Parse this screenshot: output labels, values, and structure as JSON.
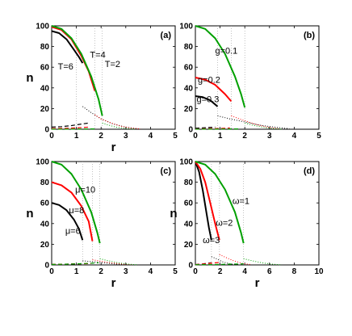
{
  "chart_data": [
    {
      "type": "line",
      "panel_label": "(a)",
      "xlabel": "r",
      "ylabel": "n",
      "xlim": [
        0,
        5
      ],
      "ylim": [
        0,
        100
      ],
      "xticks": [
        0,
        1,
        2,
        3,
        4,
        5
      ],
      "yticks": [
        0,
        20,
        40,
        60,
        80,
        100
      ],
      "vlines": [
        1.0,
        1.75,
        2.05
      ],
      "series": [
        {
          "name": "T=6",
          "color": "#000000",
          "condensate": {
            "x": [
              0,
              0.3,
              0.6,
              0.9,
              1.1,
              1.25
            ],
            "y": [
              95,
              93,
              87,
              77,
              70,
              64
            ]
          },
          "dashed": {
            "x": [
              0,
              0.4,
              0.8,
              1.2,
              1.5
            ],
            "y": [
              2,
              2.5,
              3.5,
              5,
              6
            ]
          },
          "dotted": {
            "x": [
              1.25,
              1.6,
              2.0,
              2.5,
              3.0,
              3.5
            ],
            "y": [
              22,
              16,
              10,
              5,
              2,
              0.5
            ]
          }
        },
        {
          "name": "T=4",
          "color": "#ff0000",
          "condensate": {
            "x": [
              0,
              0.4,
              0.8,
              1.2,
              1.5,
              1.75
            ],
            "y": [
              99,
              96,
              87,
              71,
              56,
              37
            ]
          },
          "dashed": {
            "x": [
              0,
              0.5,
              1.0,
              1.5
            ],
            "y": [
              0.6,
              0.8,
              1.3,
              2
            ]
          },
          "dotted": {
            "x": [
              1.75,
              2.0,
              2.4,
              2.8,
              3.2,
              3.6
            ],
            "y": [
              14,
              10,
              6,
              3,
              1.2,
              0.3
            ]
          }
        },
        {
          "name": "T=2",
          "color": "#00a000",
          "condensate": {
            "x": [
              0,
              0.4,
              0.8,
              1.2,
              1.6,
              1.9,
              2.05
            ],
            "y": [
              100,
              97,
              88,
              73,
              51,
              29,
              13
            ]
          },
          "dashed": {
            "x": [
              0,
              0.6,
              1.2,
              1.8
            ],
            "y": [
              0.1,
              0.1,
              0.2,
              0.3
            ]
          },
          "dotted": {
            "x": [
              2.05,
              2.3,
              2.6,
              3.0,
              3.4
            ],
            "y": [
              6,
              4,
              2,
              0.7,
              0.1
            ]
          }
        }
      ],
      "annotations": [
        {
          "text": "T=6",
          "x": 0.25,
          "y": 58
        },
        {
          "text": "T=4",
          "x": 1.55,
          "y": 69
        },
        {
          "text": "T=2",
          "x": 2.15,
          "y": 60
        }
      ]
    },
    {
      "type": "line",
      "panel_label": "(b)",
      "xlabel": "",
      "ylabel": "",
      "xlim": [
        0,
        5
      ],
      "ylim": [
        0,
        100
      ],
      "xticks": [
        0,
        1,
        2,
        3,
        4,
        5
      ],
      "yticks": [
        0,
        20,
        40,
        60,
        80,
        100
      ],
      "vlines": [
        0.9,
        1.45,
        2.0
      ],
      "series": [
        {
          "name": "g=0.3",
          "color": "#000000",
          "condensate": {
            "x": [
              0,
              0.3,
              0.6,
              0.9
            ],
            "y": [
              32,
              31,
              28,
              22
            ]
          },
          "dashed": {
            "x": [
              0,
              0.4,
              0.8
            ],
            "y": [
              1,
              1.5,
              2
            ]
          },
          "dotted": {
            "x": [
              0.9,
              1.4,
              2.0,
              2.6,
              3.2,
              3.8
            ],
            "y": [
              13,
              10,
              7,
              4,
              2,
              0.5
            ]
          }
        },
        {
          "name": "g=0.2",
          "color": "#ff0000",
          "condensate": {
            "x": [
              0,
              0.4,
              0.8,
              1.2,
              1.45
            ],
            "y": [
              50,
              48,
              43,
              34,
              27
            ]
          },
          "dashed": {
            "x": [
              0,
              0.5,
              1.0,
              1.4
            ],
            "y": [
              0.3,
              0.5,
              0.8,
              1.2
            ]
          },
          "dotted": {
            "x": [
              1.45,
              1.9,
              2.4,
              2.9,
              3.4
            ],
            "y": [
              13,
              9,
              5,
              2,
              0.5
            ]
          }
        },
        {
          "name": "g=0.1",
          "color": "#00a000",
          "condensate": {
            "x": [
              0,
              0.4,
              0.8,
              1.2,
              1.6,
              1.85,
              2.0
            ],
            "y": [
              100,
              97,
              88,
              73,
              51,
              34,
              21
            ]
          },
          "dashed": {
            "x": [
              0,
              0.6,
              1.2,
              1.8
            ],
            "y": [
              0.1,
              0.1,
              0.2,
              0.3
            ]
          },
          "dotted": {
            "x": [
              2.0,
              2.3,
              2.7,
              3.1,
              3.5
            ],
            "y": [
              6,
              4,
              2,
              0.7,
              0.1
            ]
          }
        }
      ],
      "annotations": [
        {
          "text": "g=0.1",
          "x": 0.8,
          "y": 73
        },
        {
          "text": "g=0.2",
          "x": 0.1,
          "y": 45
        },
        {
          "text": "g=0.3",
          "x": 0.05,
          "y": 26
        }
      ]
    },
    {
      "type": "line",
      "panel_label": "(c)",
      "xlabel": "r",
      "ylabel": "n",
      "xlim": [
        0,
        5
      ],
      "ylim": [
        0,
        100
      ],
      "xticks": [
        0,
        1,
        2,
        3,
        4,
        5
      ],
      "yticks": [
        0,
        20,
        40,
        60,
        80,
        100
      ],
      "vlines": [
        1.25,
        1.65,
        1.95
      ],
      "series": [
        {
          "name": "μ=6",
          "color": "#000000",
          "condensate": {
            "x": [
              0,
              0.3,
              0.6,
              0.9,
              1.1,
              1.25
            ],
            "y": [
              60,
              58,
              53,
              44,
              35,
              24
            ]
          },
          "dashed": {
            "x": [
              0,
              0.5,
              1.0,
              1.25
            ],
            "y": [
              0.5,
              0.7,
              1.0,
              1.2
            ]
          },
          "dotted": {
            "x": [
              1.25,
              1.7,
              2.2,
              2.7,
              3.2
            ],
            "y": [
              4,
              3,
              1.8,
              0.7,
              0.2
            ]
          }
        },
        {
          "name": "μ=8",
          "color": "#ff0000",
          "condensate": {
            "x": [
              0,
              0.4,
              0.8,
              1.2,
              1.5,
              1.65
            ],
            "y": [
              80,
              77,
              70,
              57,
              42,
              23
            ]
          },
          "dashed": {
            "x": [
              0,
              0.5,
              1.0,
              1.6
            ],
            "y": [
              0.5,
              0.7,
              1.0,
              1.3
            ]
          },
          "dotted": {
            "x": [
              1.65,
              2.0,
              2.4,
              2.9,
              3.3
            ],
            "y": [
              5,
              3.5,
              2,
              0.8,
              0.2
            ]
          }
        },
        {
          "name": "μ=10",
          "color": "#00a000",
          "condensate": {
            "x": [
              0,
              0.4,
              0.8,
              1.2,
              1.6,
              1.85,
              1.95
            ],
            "y": [
              100,
              97,
              88,
              73,
              51,
              31,
              21
            ]
          },
          "dashed": {
            "x": [
              0,
              0.6,
              1.2,
              1.9
            ],
            "y": [
              0.5,
              0.7,
              1.2,
              2
            ]
          },
          "dotted": {
            "x": [
              1.95,
              2.3,
              2.7,
              3.1,
              3.5
            ],
            "y": [
              6,
              4,
              2,
              0.7,
              0.1
            ]
          }
        }
      ],
      "annotations": [
        {
          "text": "μ=10",
          "x": 0.95,
          "y": 70
        },
        {
          "text": "μ=8",
          "x": 0.7,
          "y": 50
        },
        {
          "text": "μ=6",
          "x": 0.55,
          "y": 30
        }
      ]
    },
    {
      "type": "line",
      "panel_label": "(d)",
      "xlabel": "r",
      "ylabel": "n",
      "xlim": [
        0,
        10
      ],
      "ylim": [
        0,
        100
      ],
      "xticks": [
        0,
        2,
        4,
        6,
        8,
        10
      ],
      "yticks": [
        0,
        20,
        40,
        60,
        80,
        100
      ],
      "vlines": [
        1.3,
        1.95,
        3.9
      ],
      "series": [
        {
          "name": "ω=3",
          "color": "#000000",
          "condensate": {
            "x": [
              0,
              0.3,
              0.6,
              0.9,
              1.1,
              1.3
            ],
            "y": [
              100,
              90,
              72,
              50,
              36,
              24
            ]
          },
          "dashed": {
            "x": [
              0,
              0.6,
              1.3
            ],
            "y": [
              0.3,
              1,
              2
            ]
          },
          "dotted": {
            "x": [
              1.3,
              1.7,
              2.2,
              2.8,
              3.3
            ],
            "y": [
              8,
              6,
              3,
              1,
              0.2
            ]
          }
        },
        {
          "name": "ω=2",
          "color": "#ff0000",
          "condensate": {
            "x": [
              0,
              0.4,
              0.8,
              1.2,
              1.6,
              1.95
            ],
            "y": [
              100,
              93,
              80,
              60,
              40,
              24
            ]
          },
          "dashed": {
            "x": [
              0,
              0.8,
              1.6,
              2.0
            ],
            "y": [
              0.3,
              1,
              2,
              2.5
            ]
          },
          "dotted": {
            "x": [
              1.95,
              2.5,
              3.1,
              3.8,
              4.5
            ],
            "y": [
              10,
              7,
              4,
              1.5,
              0.3
            ]
          }
        },
        {
          "name": "ω=1",
          "color": "#00a000",
          "condensate": {
            "x": [
              0,
              0.8,
              1.6,
              2.4,
              3.2,
              3.7,
              3.9
            ],
            "y": [
              100,
              97,
              88,
              73,
              51,
              31,
              21
            ]
          },
          "dashed": {
            "x": [
              0,
              1.2,
              2.4,
              3.9
            ],
            "y": [
              0.2,
              0.3,
              0.6,
              1
            ]
          },
          "dotted": {
            "x": [
              3.9,
              4.6,
              5.4,
              6.2,
              7.0
            ],
            "y": [
              6,
              4,
              2,
              0.7,
              0.1
            ]
          }
        }
      ],
      "annotations": [
        {
          "text": "ω=1",
          "x": 3.0,
          "y": 59
        },
        {
          "text": "ω=2",
          "x": 1.65,
          "y": 38
        },
        {
          "text": "ω=3",
          "x": 0.6,
          "y": 21
        }
      ]
    }
  ]
}
